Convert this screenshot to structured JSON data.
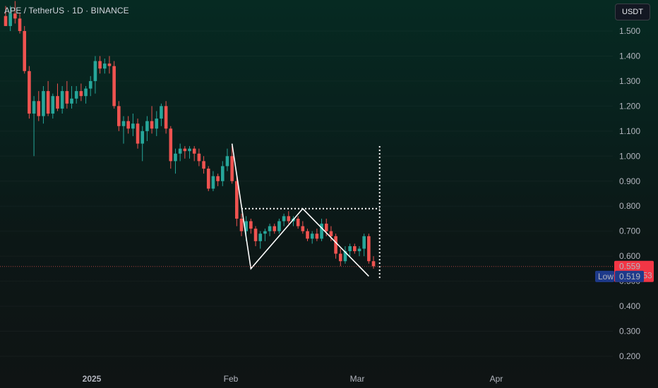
{
  "header": {
    "symbol_title": "APE / TetherUS · 1D · BINANCE",
    "currency_button": "USDT"
  },
  "colors": {
    "up": "#26a69a",
    "down": "#ef5350",
    "pattern_line": "#ffffff",
    "price_badge": "#f23645",
    "low_badge": "#1e3a8a"
  },
  "price_labels": {
    "current_price": "0.559",
    "countdown": "15:34:53",
    "low_tag": "Low",
    "low_value": "0.519"
  },
  "chart_data": {
    "type": "candlestick",
    "ylim": [
      0.14,
      1.6
    ],
    "yticks": [
      "1.500",
      "1.400",
      "1.300",
      "1.200",
      "1.100",
      "1.000",
      "0.900",
      "0.800",
      "0.700",
      "0.600",
      "0.500",
      "0.400",
      "0.300",
      "0.200"
    ],
    "xticks": [
      "2025",
      "Feb",
      "Mar",
      "Apr"
    ],
    "current_price": 0.559,
    "low": 0.519,
    "candles": [
      {
        "o": 1.56,
        "h": 1.6,
        "l": 1.52,
        "c": 1.52
      },
      {
        "o": 1.52,
        "h": 1.6,
        "l": 1.5,
        "c": 1.57
      },
      {
        "o": 1.57,
        "h": 1.62,
        "l": 1.53,
        "c": 1.55
      },
      {
        "o": 1.55,
        "h": 1.57,
        "l": 1.49,
        "c": 1.5
      },
      {
        "o": 1.5,
        "h": 1.52,
        "l": 1.33,
        "c": 1.34
      },
      {
        "o": 1.34,
        "h": 1.36,
        "l": 1.15,
        "c": 1.17
      },
      {
        "o": 1.17,
        "h": 1.24,
        "l": 1.0,
        "c": 1.22
      },
      {
        "o": 1.22,
        "h": 1.26,
        "l": 1.14,
        "c": 1.16
      },
      {
        "o": 1.16,
        "h": 1.28,
        "l": 1.13,
        "c": 1.26
      },
      {
        "o": 1.26,
        "h": 1.3,
        "l": 1.16,
        "c": 1.17
      },
      {
        "o": 1.17,
        "h": 1.25,
        "l": 1.15,
        "c": 1.24
      },
      {
        "o": 1.24,
        "h": 1.29,
        "l": 1.18,
        "c": 1.19
      },
      {
        "o": 1.19,
        "h": 1.28,
        "l": 1.17,
        "c": 1.26
      },
      {
        "o": 1.26,
        "h": 1.3,
        "l": 1.19,
        "c": 1.21
      },
      {
        "o": 1.21,
        "h": 1.28,
        "l": 1.19,
        "c": 1.23
      },
      {
        "o": 1.23,
        "h": 1.28,
        "l": 1.21,
        "c": 1.26
      },
      {
        "o": 1.26,
        "h": 1.29,
        "l": 1.22,
        "c": 1.24
      },
      {
        "o": 1.24,
        "h": 1.28,
        "l": 1.21,
        "c": 1.27
      },
      {
        "o": 1.27,
        "h": 1.32,
        "l": 1.24,
        "c": 1.3
      },
      {
        "o": 1.3,
        "h": 1.4,
        "l": 1.25,
        "c": 1.38
      },
      {
        "o": 1.38,
        "h": 1.4,
        "l": 1.33,
        "c": 1.35
      },
      {
        "o": 1.35,
        "h": 1.39,
        "l": 1.33,
        "c": 1.37
      },
      {
        "o": 1.37,
        "h": 1.4,
        "l": 1.33,
        "c": 1.36
      },
      {
        "o": 1.36,
        "h": 1.38,
        "l": 1.19,
        "c": 1.2
      },
      {
        "o": 1.2,
        "h": 1.22,
        "l": 1.1,
        "c": 1.12
      },
      {
        "o": 1.12,
        "h": 1.16,
        "l": 1.05,
        "c": 1.14
      },
      {
        "o": 1.14,
        "h": 1.16,
        "l": 1.09,
        "c": 1.11
      },
      {
        "o": 1.11,
        "h": 1.17,
        "l": 1.08,
        "c": 1.13
      },
      {
        "o": 1.13,
        "h": 1.15,
        "l": 1.03,
        "c": 1.05
      },
      {
        "o": 1.05,
        "h": 1.12,
        "l": 0.98,
        "c": 1.1
      },
      {
        "o": 1.1,
        "h": 1.16,
        "l": 1.06,
        "c": 1.14
      },
      {
        "o": 1.14,
        "h": 1.2,
        "l": 1.09,
        "c": 1.11
      },
      {
        "o": 1.11,
        "h": 1.18,
        "l": 1.08,
        "c": 1.15
      },
      {
        "o": 1.15,
        "h": 1.21,
        "l": 1.12,
        "c": 1.2
      },
      {
        "o": 1.2,
        "h": 1.22,
        "l": 1.09,
        "c": 1.11
      },
      {
        "o": 1.11,
        "h": 1.12,
        "l": 0.95,
        "c": 0.98
      },
      {
        "o": 0.98,
        "h": 1.03,
        "l": 0.93,
        "c": 1.01
      },
      {
        "o": 1.01,
        "h": 1.05,
        "l": 0.98,
        "c": 1.03
      },
      {
        "o": 1.03,
        "h": 1.04,
        "l": 0.99,
        "c": 1.02
      },
      {
        "o": 1.02,
        "h": 1.04,
        "l": 0.99,
        "c": 1.03
      },
      {
        "o": 1.03,
        "h": 1.04,
        "l": 0.98,
        "c": 1.01
      },
      {
        "o": 1.01,
        "h": 1.03,
        "l": 0.96,
        "c": 0.98
      },
      {
        "o": 0.98,
        "h": 1.0,
        "l": 0.93,
        "c": 0.95
      },
      {
        "o": 0.95,
        "h": 0.96,
        "l": 0.86,
        "c": 0.87
      },
      {
        "o": 0.87,
        "h": 0.94,
        "l": 0.86,
        "c": 0.92
      },
      {
        "o": 0.92,
        "h": 0.93,
        "l": 0.88,
        "c": 0.9
      },
      {
        "o": 0.9,
        "h": 0.98,
        "l": 0.88,
        "c": 0.96
      },
      {
        "o": 0.96,
        "h": 1.03,
        "l": 0.94,
        "c": 1.0
      },
      {
        "o": 1.0,
        "h": 1.04,
        "l": 0.89,
        "c": 0.9
      },
      {
        "o": 0.9,
        "h": 0.92,
        "l": 0.72,
        "c": 0.75
      },
      {
        "o": 0.75,
        "h": 0.77,
        "l": 0.68,
        "c": 0.7
      },
      {
        "o": 0.7,
        "h": 0.76,
        "l": 0.66,
        "c": 0.74
      },
      {
        "o": 0.74,
        "h": 0.75,
        "l": 0.69,
        "c": 0.71
      },
      {
        "o": 0.71,
        "h": 0.72,
        "l": 0.64,
        "c": 0.66
      },
      {
        "o": 0.66,
        "h": 0.7,
        "l": 0.63,
        "c": 0.69
      },
      {
        "o": 0.69,
        "h": 0.71,
        "l": 0.66,
        "c": 0.7
      },
      {
        "o": 0.7,
        "h": 0.73,
        "l": 0.68,
        "c": 0.72
      },
      {
        "o": 0.72,
        "h": 0.73,
        "l": 0.69,
        "c": 0.7
      },
      {
        "o": 0.7,
        "h": 0.75,
        "l": 0.69,
        "c": 0.74
      },
      {
        "o": 0.74,
        "h": 0.77,
        "l": 0.72,
        "c": 0.76
      },
      {
        "o": 0.76,
        "h": 0.78,
        "l": 0.73,
        "c": 0.74
      },
      {
        "o": 0.74,
        "h": 0.76,
        "l": 0.72,
        "c": 0.75
      },
      {
        "o": 0.75,
        "h": 0.76,
        "l": 0.71,
        "c": 0.72
      },
      {
        "o": 0.72,
        "h": 0.74,
        "l": 0.69,
        "c": 0.7
      },
      {
        "o": 0.7,
        "h": 0.71,
        "l": 0.66,
        "c": 0.67
      },
      {
        "o": 0.67,
        "h": 0.7,
        "l": 0.65,
        "c": 0.69
      },
      {
        "o": 0.69,
        "h": 0.71,
        "l": 0.66,
        "c": 0.67
      },
      {
        "o": 0.67,
        "h": 0.75,
        "l": 0.66,
        "c": 0.73
      },
      {
        "o": 0.73,
        "h": 0.75,
        "l": 0.68,
        "c": 0.7
      },
      {
        "o": 0.7,
        "h": 0.72,
        "l": 0.66,
        "c": 0.68
      },
      {
        "o": 0.68,
        "h": 0.69,
        "l": 0.59,
        "c": 0.61
      },
      {
        "o": 0.61,
        "h": 0.63,
        "l": 0.56,
        "c": 0.58
      },
      {
        "o": 0.58,
        "h": 0.64,
        "l": 0.57,
        "c": 0.62
      },
      {
        "o": 0.62,
        "h": 0.65,
        "l": 0.6,
        "c": 0.64
      },
      {
        "o": 0.64,
        "h": 0.65,
        "l": 0.61,
        "c": 0.62
      },
      {
        "o": 0.62,
        "h": 0.64,
        "l": 0.6,
        "c": 0.63
      },
      {
        "o": 0.63,
        "h": 0.69,
        "l": 0.6,
        "c": 0.68
      },
      {
        "o": 0.68,
        "h": 0.69,
        "l": 0.57,
        "c": 0.58
      },
      {
        "o": 0.58,
        "h": 0.6,
        "l": 0.55,
        "c": 0.56
      }
    ],
    "pattern": {
      "zigzag": [
        [
          48,
          1.05
        ],
        [
          52,
          0.55
        ],
        [
          63,
          0.79
        ],
        [
          77,
          0.52
        ]
      ],
      "neckline_price": 0.79,
      "neckline_from_index": 50,
      "target_top": 1.04
    }
  }
}
